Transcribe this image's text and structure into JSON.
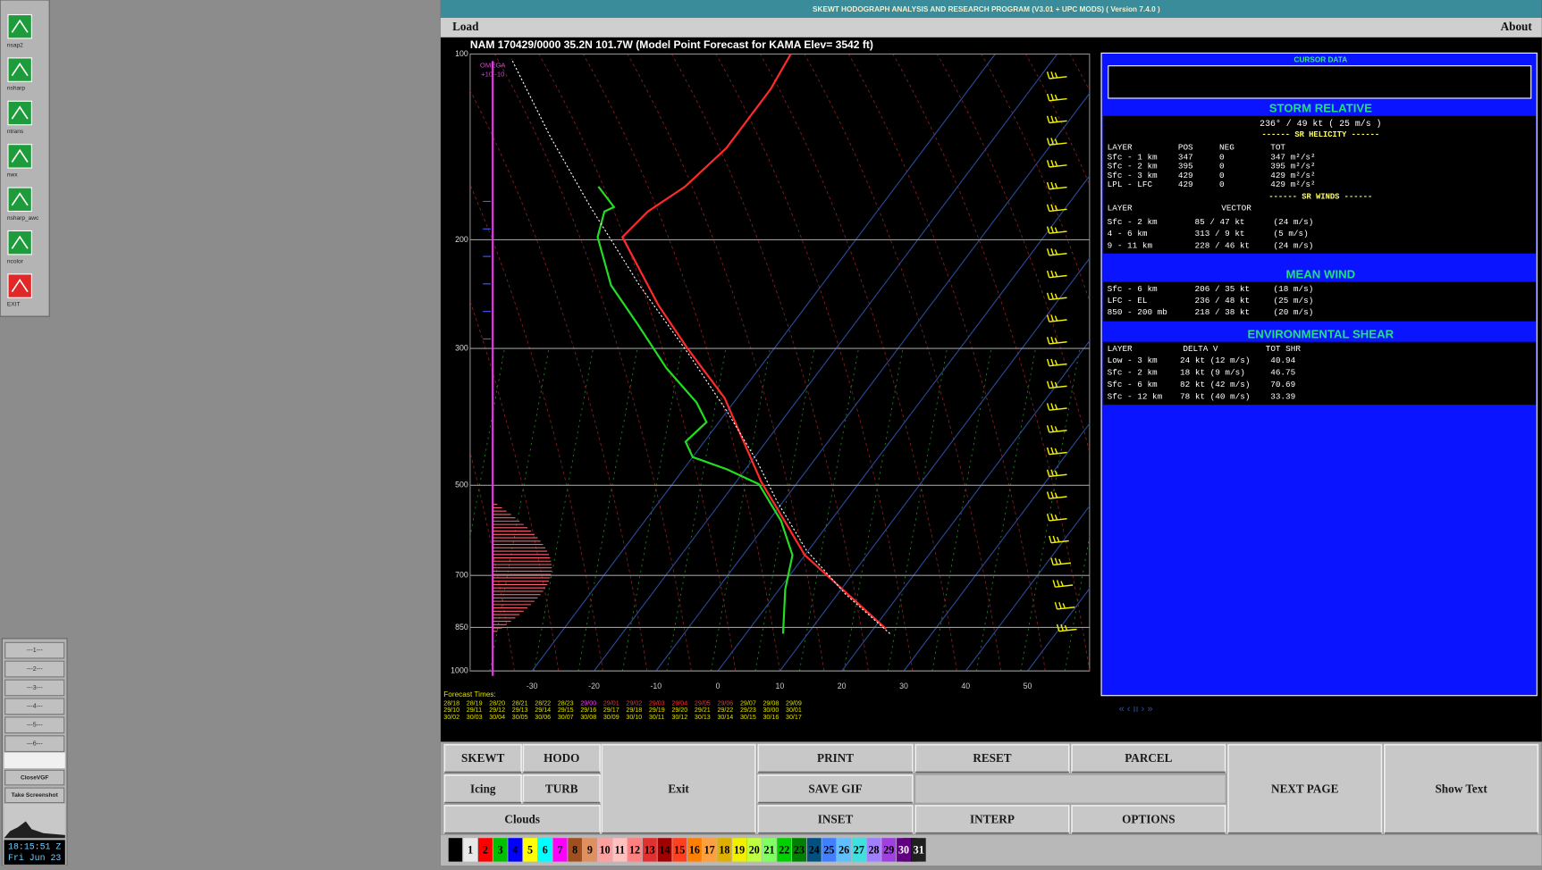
{
  "window": {
    "title": "SKEWT HODOGRAPH ANALYSIS AND RESEARCH PROGRAM (V3.01 + UPC MODS) ( Version 7.4.0 )",
    "menu": [
      "Load",
      "About"
    ]
  },
  "chart_data": {
    "type": "skew-t",
    "title": "NAM 170429/0000 35.2N 101.7W  (Model Point Forecast for KAMA Elev= 3542 ft)",
    "log_y": true,
    "ylim": [
      1000,
      100
    ],
    "yticks": [
      100,
      200,
      300,
      500,
      700,
      850,
      1000
    ],
    "xlim": [
      -40,
      60
    ],
    "xticks": [
      -30,
      -20,
      -10,
      0,
      10,
      20,
      30,
      40,
      50
    ],
    "grid": true,
    "series": [
      {
        "color": "#ff2a2a",
        "pressure": [
          854,
          649,
          493,
          361,
          300,
          255,
          198,
          180,
          164,
          142,
          114,
          100
        ],
        "values": [
          22,
          0,
          -16,
          -32,
          -44,
          -54,
          -68,
          -67,
          -64,
          -62,
          -62,
          -63
        ]
      },
      {
        "color": "#22dd22",
        "pressure": [
          870,
          738,
          649,
          571,
          498,
          471,
          450,
          425,
          395,
          367,
          323,
          274,
          237,
          198,
          180,
          177,
          164
        ],
        "values": [
          6,
          1,
          -2,
          -8,
          -16,
          -23,
          -30,
          -33,
          -32,
          -36,
          -45,
          -55,
          -64,
          -72,
          -74,
          -73,
          -78
        ]
      }
    ]
  },
  "omega": {
    "label": "OMEGA",
    "scale": "+10 -10"
  },
  "forecast_times": {
    "label": "Forecast Times:",
    "rows": [
      [
        "28/18",
        "28/19",
        "28/20",
        "28/21",
        "28/22",
        "28/23",
        "29/00",
        "29/01",
        "29/02",
        "29/03",
        "29/04",
        "29/05",
        "29/06",
        "29/07",
        "29/08",
        "29/09"
      ],
      [
        "29/10",
        "29/11",
        "29/12",
        "29/13",
        "29/14",
        "29/15",
        "29/16",
        "29/17",
        "29/18",
        "29/19",
        "29/20",
        "29/21",
        "29/22",
        "29/23",
        "30/00",
        "30/01"
      ],
      [
        "30/02",
        "30/03",
        "30/04",
        "30/05",
        "30/06",
        "30/07",
        "30/08",
        "30/09",
        "30/10",
        "30/11",
        "30/12",
        "30/13",
        "30/14",
        "30/15",
        "30/16",
        "30/17"
      ]
    ]
  },
  "panel": {
    "cursor": "CURSOR DATA",
    "storm_relative": {
      "title": "STORM RELATIVE",
      "motion": "236° /  49 kt    ( 25 m/s )",
      "helicity_title": "------ SR HELICITY ------",
      "helicity_header": [
        "LAYER",
        "POS",
        "NEG",
        "TOT"
      ],
      "helicity_rows": [
        [
          "Sfc - 1 km",
          "347",
          "0",
          "347 m²/s²"
        ],
        [
          "Sfc - 2 km",
          "395",
          "0",
          "395 m²/s²"
        ],
        [
          "Sfc - 3 km",
          "429",
          "0",
          "429 m²/s²"
        ],
        [
          "LPL - LFC",
          "429",
          "0",
          "429 m²/s²"
        ]
      ],
      "winds_title": "------ SR WINDS ------",
      "winds_header": [
        "LAYER",
        "VECTOR"
      ],
      "winds_rows": [
        [
          "Sfc - 2 km",
          "85 / 47 kt",
          "(24 m/s)"
        ],
        [
          "4 - 6 km",
          "313 /  9 kt",
          "(5 m/s)"
        ],
        [
          "9 - 11 km",
          "228 / 46 kt",
          "(24 m/s)"
        ]
      ]
    },
    "mean_wind": {
      "title": "MEAN WIND",
      "rows": [
        [
          "Sfc - 6 km",
          "206 / 35 kt",
          "(18 m/s)"
        ],
        [
          "LFC - EL",
          "236 / 48 kt",
          "(25 m/s)"
        ],
        [
          "850 - 200 mb",
          "218 / 38 kt",
          "(20 m/s)"
        ]
      ]
    },
    "shear": {
      "title": "ENVIRONMENTAL SHEAR",
      "header": [
        "LAYER",
        "DELTA V",
        "TOT SHR"
      ],
      "rows": [
        [
          "Low - 3 km",
          "24 kt (12 m/s)",
          "40.94"
        ],
        [
          "Sfc - 2 km",
          "18 kt (9 m/s)",
          "46.75"
        ],
        [
          "Sfc - 6 km",
          "82 kt (42 m/s)",
          "70.69"
        ],
        [
          "Sfc - 12 km",
          "78 kt (40 m/s)",
          "33.39"
        ]
      ]
    }
  },
  "nav": "« ‹ ıı › »",
  "buttons": [
    "SKEWT",
    "HODO",
    "Icing",
    "TURB",
    "Clouds",
    "Exit",
    "PRINT",
    "SAVE GIF",
    "INSET",
    "RESET",
    "INTERP",
    "PARCEL",
    "OPTIONS",
    "NEXT PAGE",
    "Show Text"
  ],
  "palette": {
    "numbers": [
      1,
      2,
      3,
      4,
      5,
      6,
      7,
      8,
      9,
      10,
      11,
      12,
      13,
      14,
      15,
      16,
      17,
      18,
      19,
      20,
      21,
      22,
      23,
      24,
      25,
      26,
      27,
      28,
      29,
      30,
      31
    ],
    "colors": [
      "#e8e8e8",
      "#ff0000",
      "#00c000",
      "#0000ff",
      "#ffff00",
      "#00ffff",
      "#ff00ff",
      "#a05020",
      "#e09060",
      "#ffa0a0",
      "#ffc0c0",
      "#ff8080",
      "#e03030",
      "#a00000",
      "#ff4020",
      "#ff8000",
      "#ffa040",
      "#e0b000",
      "#f0f000",
      "#c0ff40",
      "#80ff60",
      "#00d000",
      "#008000",
      "#005080",
      "#4080ff",
      "#60c0ff",
      "#40e0e0",
      "#a080ff",
      "#a040e0",
      "#600080",
      "#202020"
    ]
  },
  "dock": {
    "apps": [
      "nsap2",
      "nsharp",
      "ntrans",
      "nwx",
      "nsharp_awc",
      "ncolor",
      "EXIT"
    ],
    "slots": [
      "---1---",
      "---2---",
      "---3---",
      "---4---",
      "---5---",
      "---6---"
    ],
    "close": "CloseVGF",
    "screenshot": "Take Screenshot",
    "clock": "18:15:51 Z",
    "date": "Fri Jun 23"
  }
}
